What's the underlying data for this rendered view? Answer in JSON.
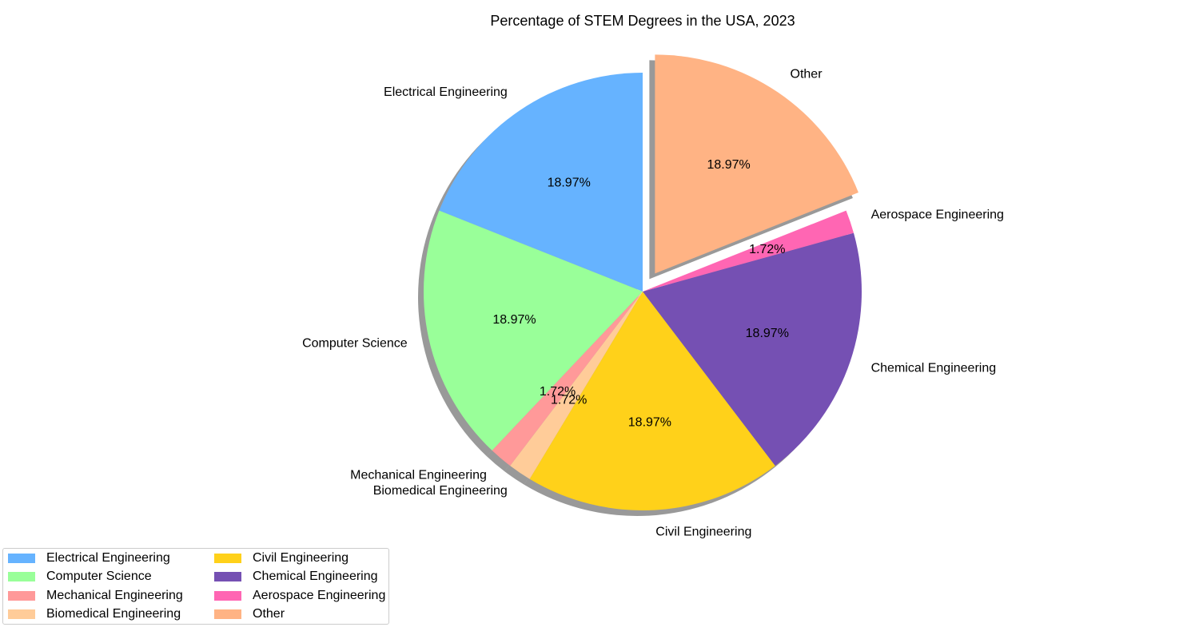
{
  "chart_data": {
    "type": "pie",
    "title": "Percentage of STEM Degrees in the USA, 2023",
    "slices": [
      {
        "label": "Electrical Engineering",
        "value": 18.97,
        "pct_text": "18.97%",
        "color": "#66b3ff",
        "exploded": false
      },
      {
        "label": "Computer Science",
        "value": 18.97,
        "pct_text": "18.97%",
        "color": "#99ff99",
        "exploded": false
      },
      {
        "label": "Mechanical Engineering",
        "value": 1.72,
        "pct_text": "1.72%",
        "color": "#ff9999",
        "exploded": false
      },
      {
        "label": "Biomedical Engineering",
        "value": 1.72,
        "pct_text": "1.72%",
        "color": "#ffcc99",
        "exploded": false
      },
      {
        "label": "Civil Engineering",
        "value": 18.97,
        "pct_text": "18.97%",
        "color": "#ffd11a",
        "exploded": false
      },
      {
        "label": "Chemical Engineering",
        "value": 18.97,
        "pct_text": "18.97%",
        "color": "#7550b3",
        "exploded": false
      },
      {
        "label": "Aerospace Engineering",
        "value": 1.72,
        "pct_text": "1.72%",
        "color": "#ff66b3",
        "exploded": false
      },
      {
        "label": "Other",
        "value": 18.97,
        "pct_text": "18.97%",
        "color": "#ffb384",
        "exploded": true
      }
    ],
    "start_angle_deg": 90,
    "direction": "counterclockwise",
    "shadow": true,
    "legend_position": "lower-left",
    "legend_columns": 2
  }
}
